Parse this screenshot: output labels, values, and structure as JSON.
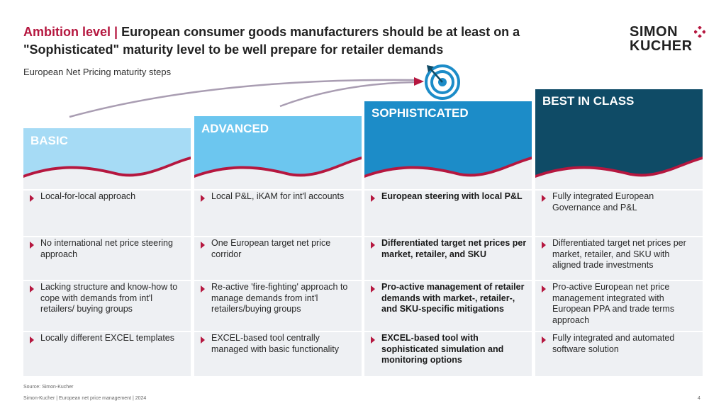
{
  "header": {
    "title_prefix": "Ambition level |",
    "title_main": "European consumer goods manufacturers should be at least on a \"Sophisticated\" maturity level to be well prepare for retailer demands",
    "subtitle": "European Net Pricing maturity steps"
  },
  "logo": {
    "line1": "SIMON",
    "line2": "KUCHER"
  },
  "colors": {
    "accent": "#b5173f",
    "basic": "#a6dbf5",
    "advanced": "#6cc6ef",
    "sophisticated": "#1c8cc8",
    "best": "#0f4b66",
    "cell_bg": "#eef0f3"
  },
  "columns": [
    {
      "label": "BASIC",
      "bold": false,
      "items": [
        "Local-for-local approach",
        "No international net price steering approach",
        "Lacking structure and know-how to cope with demands from int'l retailers/ buying groups",
        "Locally different EXCEL templates"
      ]
    },
    {
      "label": "ADVANCED",
      "bold": false,
      "items": [
        "Local P&L, iKAM for int'l accounts",
        "One European target net price corridor",
        "Re-active 'fire-fighting' approach to manage demands from int'l retailers/buying groups",
        "EXCEL-based tool centrally managed with basic functionality"
      ]
    },
    {
      "label": "SOPHISTICATED",
      "bold": true,
      "items": [
        "European steering with local P&L",
        "Differentiated target net prices per market, retailer, and SKU",
        "Pro-active management of retailer demands with market-, retailer-, and SKU-specific mitigations",
        "EXCEL-based tool with sophisticated simulation and monitoring options"
      ]
    },
    {
      "label": "BEST IN CLASS",
      "bold": false,
      "items": [
        "Fully integrated European Governance and P&L",
        "Differentiated target net prices per market, retailer, and SKU with aligned trade investments",
        "Pro-active European net price management integrated with European PPA and trade terms approach",
        "Fully integrated and automated software solution"
      ]
    }
  ],
  "footer": {
    "source": "Source: Simon-Kucher",
    "copyright": "Simon-Kucher | European net price management | 2024",
    "page": "4"
  }
}
